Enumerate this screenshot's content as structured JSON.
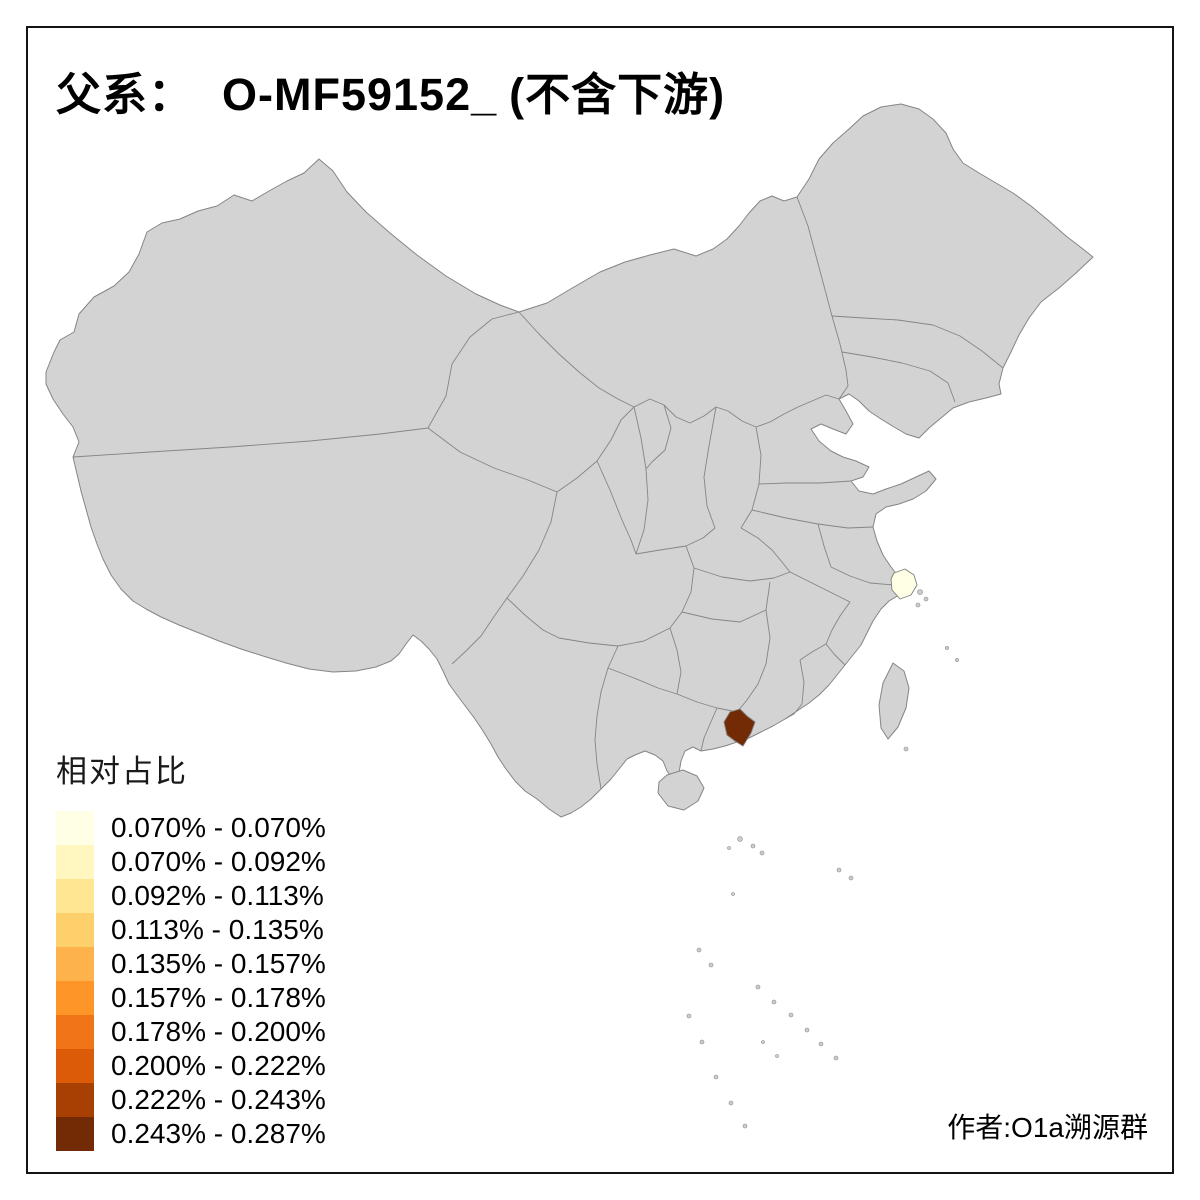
{
  "title": {
    "prefix": "父系：",
    "code": "O-MF59152_",
    "suffix": "(不含下游)"
  },
  "legend": {
    "title": "相对占比",
    "items": [
      {
        "label": "0.070% - 0.070%",
        "color": "#FFFFE5"
      },
      {
        "label": "0.070% - 0.092%",
        "color": "#FFF7BF"
      },
      {
        "label": "0.092% - 0.113%",
        "color": "#FEE693"
      },
      {
        "label": "0.113% - 0.135%",
        "color": "#FED06C"
      },
      {
        "label": "0.135% - 0.157%",
        "color": "#FEB24B"
      },
      {
        "label": "0.157% - 0.178%",
        "color": "#FD9529"
      },
      {
        "label": "0.178% - 0.200%",
        "color": "#F17516"
      },
      {
        "label": "0.200% - 0.222%",
        "color": "#DB5B09"
      },
      {
        "label": "0.222% - 0.243%",
        "color": "#A84003"
      },
      {
        "label": "0.243% - 0.287%",
        "color": "#732B05"
      }
    ]
  },
  "attribution": {
    "text": "作者:O1a溯源群"
  },
  "map": {
    "default_fill": "#D3D3D3",
    "border_color": "#858585",
    "background": "#FFFFFF",
    "regions": [
      {
        "name": "yangtze-delta-region",
        "bin": "0.070% - 0.070%",
        "color": "#FFFFE5"
      },
      {
        "name": "pearl-river-delta-region",
        "bin": "0.243% - 0.287%",
        "color": "#732B05"
      }
    ]
  },
  "chart_data": {
    "type": "choropleth",
    "title": "父系： O-MF59152_ (不含下游)",
    "legend_title": "相对占比",
    "legend_position": "bottom-left",
    "unit": "%",
    "bins": [
      {
        "range_min": 0.07,
        "range_max": 0.07,
        "label": "0.070% - 0.070%",
        "color": "#FFFFE5"
      },
      {
        "range_min": 0.07,
        "range_max": 0.092,
        "label": "0.070% - 0.092%",
        "color": "#FFF7BF"
      },
      {
        "range_min": 0.092,
        "range_max": 0.113,
        "label": "0.092% - 0.113%",
        "color": "#FEE693"
      },
      {
        "range_min": 0.113,
        "range_max": 0.135,
        "label": "0.113% - 0.135%",
        "color": "#FED06C"
      },
      {
        "range_min": 0.135,
        "range_max": 0.157,
        "label": "0.135% - 0.157%",
        "color": "#FEB24B"
      },
      {
        "range_min": 0.157,
        "range_max": 0.178,
        "label": "0.157% - 0.178%",
        "color": "#FD9529"
      },
      {
        "range_min": 0.178,
        "range_max": 0.2,
        "label": "0.178% - 0.200%",
        "color": "#F17516"
      },
      {
        "range_min": 0.2,
        "range_max": 0.222,
        "label": "0.200% - 0.222%",
        "color": "#DB5B09"
      },
      {
        "range_min": 0.222,
        "range_max": 0.243,
        "label": "0.222% - 0.243%",
        "color": "#A84003"
      },
      {
        "range_min": 0.243,
        "range_max": 0.287,
        "label": "0.243% - 0.287%",
        "color": "#732B05"
      }
    ],
    "highlighted_regions": [
      {
        "name": "yangtze-delta-region",
        "value_range": "0.070% - 0.070%"
      },
      {
        "name": "pearl-river-delta-region",
        "value_range": "0.243% - 0.287%"
      }
    ],
    "default_region_style": "gray (no highlighted value)"
  }
}
